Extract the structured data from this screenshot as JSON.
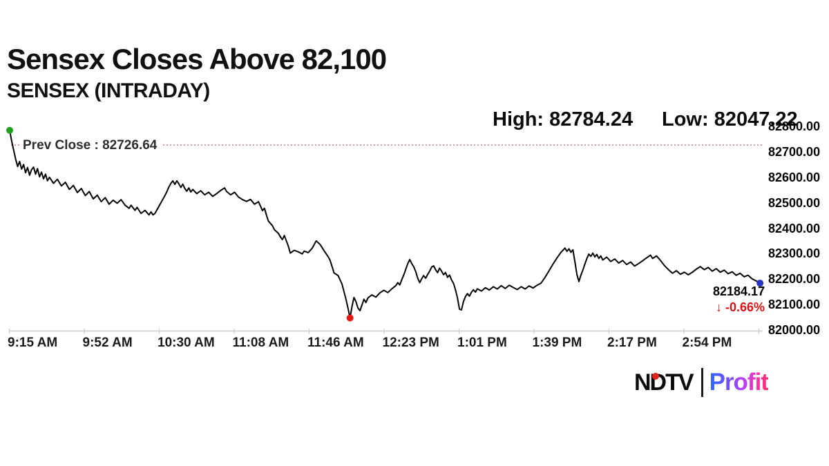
{
  "header": {
    "title": "Sensex Closes Above 82,100",
    "subtitle": "SENSEX (INTRADAY)"
  },
  "stats": {
    "high_label": "High: 82784.24",
    "low_label": "Low: 82047.22"
  },
  "chart_data": {
    "type": "line",
    "title": "SENSEX (INTRADAY)",
    "series_name": "SENSEX",
    "x_unit": "minutes after 9:15 AM",
    "x_tick_labels": [
      "9:15 AM",
      "9:52 AM",
      "10:30 AM",
      "11:08 AM",
      "11:46 AM",
      "12:23 PM",
      "1:01 PM",
      "1:39 PM",
      "2:17 PM",
      "2:54 PM"
    ],
    "y_ticks": [
      82800,
      82700,
      82600,
      82500,
      82400,
      82300,
      82200,
      82100,
      82000
    ],
    "y_tick_labels": [
      "82800.00",
      "82700.00",
      "82600.00",
      "82500.00",
      "82400.00",
      "82300.00",
      "82200.00",
      "82100.00",
      "82000.00"
    ],
    "ylim": [
      82000,
      82800
    ],
    "grid": false,
    "legend": false,
    "open": 82784.24,
    "high": 82784.24,
    "low": 82047.22,
    "close": 82184.17,
    "prev_close": 82726.64,
    "prev_close_label": "Prev Close : 82726.64",
    "last_price_label": "82184.17",
    "change_label": "↓ -0.66%",
    "colors": {
      "line": "#000000",
      "prev_close_line": "#c46a6a",
      "open_dot": "#1fa31f",
      "low_dot": "#e51616",
      "close_dot": "#2433c4",
      "change_text": "#dd1111",
      "axis": "#c9c9c9"
    },
    "points": [
      [
        0,
        82784.24
      ],
      [
        1,
        82742
      ],
      [
        2,
        82706
      ],
      [
        3,
        82672
      ],
      [
        4,
        82642
      ],
      [
        5,
        82662
      ],
      [
        6,
        82632
      ],
      [
        7,
        82650
      ],
      [
        8,
        82618
      ],
      [
        9,
        82638
      ],
      [
        10,
        82608
      ],
      [
        11,
        82630
      ],
      [
        12,
        82640
      ],
      [
        13,
        82612
      ],
      [
        14,
        82634
      ],
      [
        15,
        82602
      ],
      [
        16,
        82620
      ],
      [
        17,
        82594
      ],
      [
        18,
        82612
      ],
      [
        19,
        82586
      ],
      [
        20,
        82600
      ],
      [
        22,
        82576
      ],
      [
        24,
        82592
      ],
      [
        26,
        82566
      ],
      [
        28,
        82580
      ],
      [
        30,
        82552
      ],
      [
        32,
        82568
      ],
      [
        34,
        82540
      ],
      [
        36,
        82556
      ],
      [
        38,
        82528
      ],
      [
        40,
        82544
      ],
      [
        42,
        82515
      ],
      [
        44,
        82530
      ],
      [
        46,
        82504
      ],
      [
        48,
        82520
      ],
      [
        50,
        82494
      ],
      [
        52,
        82510
      ],
      [
        54,
        82498
      ],
      [
        56,
        82512
      ],
      [
        58,
        82490
      ],
      [
        60,
        82478
      ],
      [
        61,
        82490
      ],
      [
        63,
        82470
      ],
      [
        64,
        82482
      ],
      [
        66,
        82458
      ],
      [
        68,
        82470
      ],
      [
        70,
        82452
      ],
      [
        71,
        82464
      ],
      [
        72,
        82452
      ],
      [
        73,
        82458
      ],
      [
        74,
        82472
      ],
      [
        75,
        82486
      ],
      [
        76,
        82500
      ],
      [
        77,
        82514
      ],
      [
        78,
        82528
      ],
      [
        79,
        82544
      ],
      [
        80,
        82562
      ],
      [
        81,
        82576
      ],
      [
        82,
        82586
      ],
      [
        83,
        82572
      ],
      [
        84,
        82586
      ],
      [
        85,
        82574
      ],
      [
        86,
        82560
      ],
      [
        87,
        82573
      ],
      [
        88,
        82556
      ],
      [
        89,
        82545
      ],
      [
        90,
        82558
      ],
      [
        91,
        82542
      ],
      [
        92,
        82552
      ],
      [
        94,
        82536
      ],
      [
        96,
        82547
      ],
      [
        98,
        82531
      ],
      [
        100,
        82541
      ],
      [
        102,
        82525
      ],
      [
        104,
        82536
      ],
      [
        106,
        82548
      ],
      [
        108,
        82558
      ],
      [
        109,
        82544
      ],
      [
        111,
        82531
      ],
      [
        113,
        82541
      ],
      [
        115,
        82522
      ],
      [
        117,
        82512
      ],
      [
        119,
        82505
      ],
      [
        121,
        82513
      ],
      [
        123,
        82494
      ],
      [
        125,
        82504
      ],
      [
        126,
        82487
      ],
      [
        127,
        82469
      ],
      [
        128,
        82478
      ],
      [
        129,
        82452
      ],
      [
        130,
        82428
      ],
      [
        132,
        82410
      ],
      [
        133,
        82394
      ],
      [
        135,
        82380
      ],
      [
        136,
        82366
      ],
      [
        137,
        82355
      ],
      [
        138,
        82371
      ],
      [
        140,
        82330
      ],
      [
        141,
        82302
      ],
      [
        143,
        82313
      ],
      [
        145,
        82307
      ],
      [
        147,
        82299
      ],
      [
        148,
        82310
      ],
      [
        150,
        82304
      ],
      [
        152,
        82321
      ],
      [
        154,
        82350
      ],
      [
        156,
        82336
      ],
      [
        158,
        82311
      ],
      [
        160,
        82288
      ],
      [
        161,
        82274
      ],
      [
        163,
        82224
      ],
      [
        165,
        82214
      ],
      [
        167,
        82180
      ],
      [
        169,
        82120
      ],
      [
        170,
        82085
      ],
      [
        171,
        82047.22
      ],
      [
        172,
        82092
      ],
      [
        173,
        82128
      ],
      [
        174,
        82111
      ],
      [
        175,
        82086
      ],
      [
        176,
        82076
      ],
      [
        177,
        82098
      ],
      [
        178,
        82121
      ],
      [
        179,
        82108
      ],
      [
        180,
        82126
      ],
      [
        182,
        82138
      ],
      [
        184,
        82129
      ],
      [
        186,
        82146
      ],
      [
        188,
        82156
      ],
      [
        190,
        82147
      ],
      [
        192,
        82162
      ],
      [
        194,
        82174
      ],
      [
        195,
        82186
      ],
      [
        196,
        82177
      ],
      [
        197,
        82198
      ],
      [
        198,
        82216
      ],
      [
        199,
        82238
      ],
      [
        200,
        82260
      ],
      [
        201,
        82277
      ],
      [
        202,
        82261
      ],
      [
        203,
        82249
      ],
      [
        204,
        82230
      ],
      [
        205,
        82204
      ],
      [
        206,
        82186
      ],
      [
        207,
        82201
      ],
      [
        208,
        82214
      ],
      [
        209,
        82203
      ],
      [
        210,
        82218
      ],
      [
        211,
        82231
      ],
      [
        212,
        82247
      ],
      [
        213,
        82252
      ],
      [
        214,
        82237
      ],
      [
        215,
        82225
      ],
      [
        216,
        82243
      ],
      [
        217,
        82231
      ],
      [
        218,
        82217
      ],
      [
        219,
        82226
      ],
      [
        220,
        82207
      ],
      [
        221,
        82216
      ],
      [
        222,
        82197
      ],
      [
        223,
        82183
      ],
      [
        224,
        82158
      ],
      [
        225,
        82126
      ],
      [
        226,
        82082
      ],
      [
        227,
        82079
      ],
      [
        228,
        82112
      ],
      [
        229,
        82131
      ],
      [
        230,
        82143
      ],
      [
        231,
        82133
      ],
      [
        232,
        82148
      ],
      [
        233,
        82158
      ],
      [
        234,
        82149
      ],
      [
        235,
        82162
      ],
      [
        237,
        82153
      ],
      [
        239,
        82166
      ],
      [
        241,
        82157
      ],
      [
        243,
        82170
      ],
      [
        245,
        82161
      ],
      [
        247,
        82174
      ],
      [
        249,
        82163
      ],
      [
        251,
        82176
      ],
      [
        253,
        82167
      ],
      [
        255,
        82159
      ],
      [
        257,
        82170
      ],
      [
        259,
        82161
      ],
      [
        261,
        82173
      ],
      [
        263,
        82165
      ],
      [
        265,
        82176
      ],
      [
        267,
        82184
      ],
      [
        269,
        82207
      ],
      [
        271,
        82233
      ],
      [
        273,
        82259
      ],
      [
        275,
        82283
      ],
      [
        277,
        82305
      ],
      [
        279,
        82322
      ],
      [
        280,
        82309
      ],
      [
        281,
        82319
      ],
      [
        282,
        82305
      ],
      [
        283,
        82315
      ],
      [
        284,
        82268
      ],
      [
        285,
        82218
      ],
      [
        286,
        82190
      ],
      [
        287,
        82215
      ],
      [
        288,
        82235
      ],
      [
        289,
        82259
      ],
      [
        290,
        82281
      ],
      [
        291,
        82298
      ],
      [
        292,
        82289
      ],
      [
        293,
        82302
      ],
      [
        294,
        82287
      ],
      [
        295,
        82297
      ],
      [
        296,
        82281
      ],
      [
        297,
        82291
      ],
      [
        298,
        82275
      ],
      [
        300,
        82286
      ],
      [
        302,
        82269
      ],
      [
        304,
        82279
      ],
      [
        306,
        82263
      ],
      [
        308,
        82273
      ],
      [
        310,
        82257
      ],
      [
        312,
        82267
      ],
      [
        314,
        82251
      ],
      [
        316,
        82261
      ],
      [
        318,
        82272
      ],
      [
        320,
        82283
      ],
      [
        322,
        82294
      ],
      [
        323,
        82281
      ],
      [
        325,
        82291
      ],
      [
        327,
        82273
      ],
      [
        329,
        82253
      ],
      [
        331,
        82237
      ],
      [
        333,
        82223
      ],
      [
        335,
        82233
      ],
      [
        337,
        82219
      ],
      [
        339,
        82227
      ],
      [
        341,
        82217
      ],
      [
        343,
        82227
      ],
      [
        345,
        82239
      ],
      [
        347,
        82249
      ],
      [
        349,
        82237
      ],
      [
        351,
        82246
      ],
      [
        353,
        82231
      ],
      [
        355,
        82241
      ],
      [
        357,
        82227
      ],
      [
        359,
        82235
      ],
      [
        361,
        82221
      ],
      [
        363,
        82229
      ],
      [
        365,
        82215
      ],
      [
        367,
        82223
      ],
      [
        369,
        82209
      ],
      [
        371,
        82215
      ],
      [
        373,
        82201
      ],
      [
        375,
        82193
      ],
      [
        377,
        82184.17
      ]
    ]
  },
  "footer": {
    "brand_ndtv": "NDTV",
    "brand_profit": "Profit",
    "ndtv_dot_color": "#e0241b"
  }
}
